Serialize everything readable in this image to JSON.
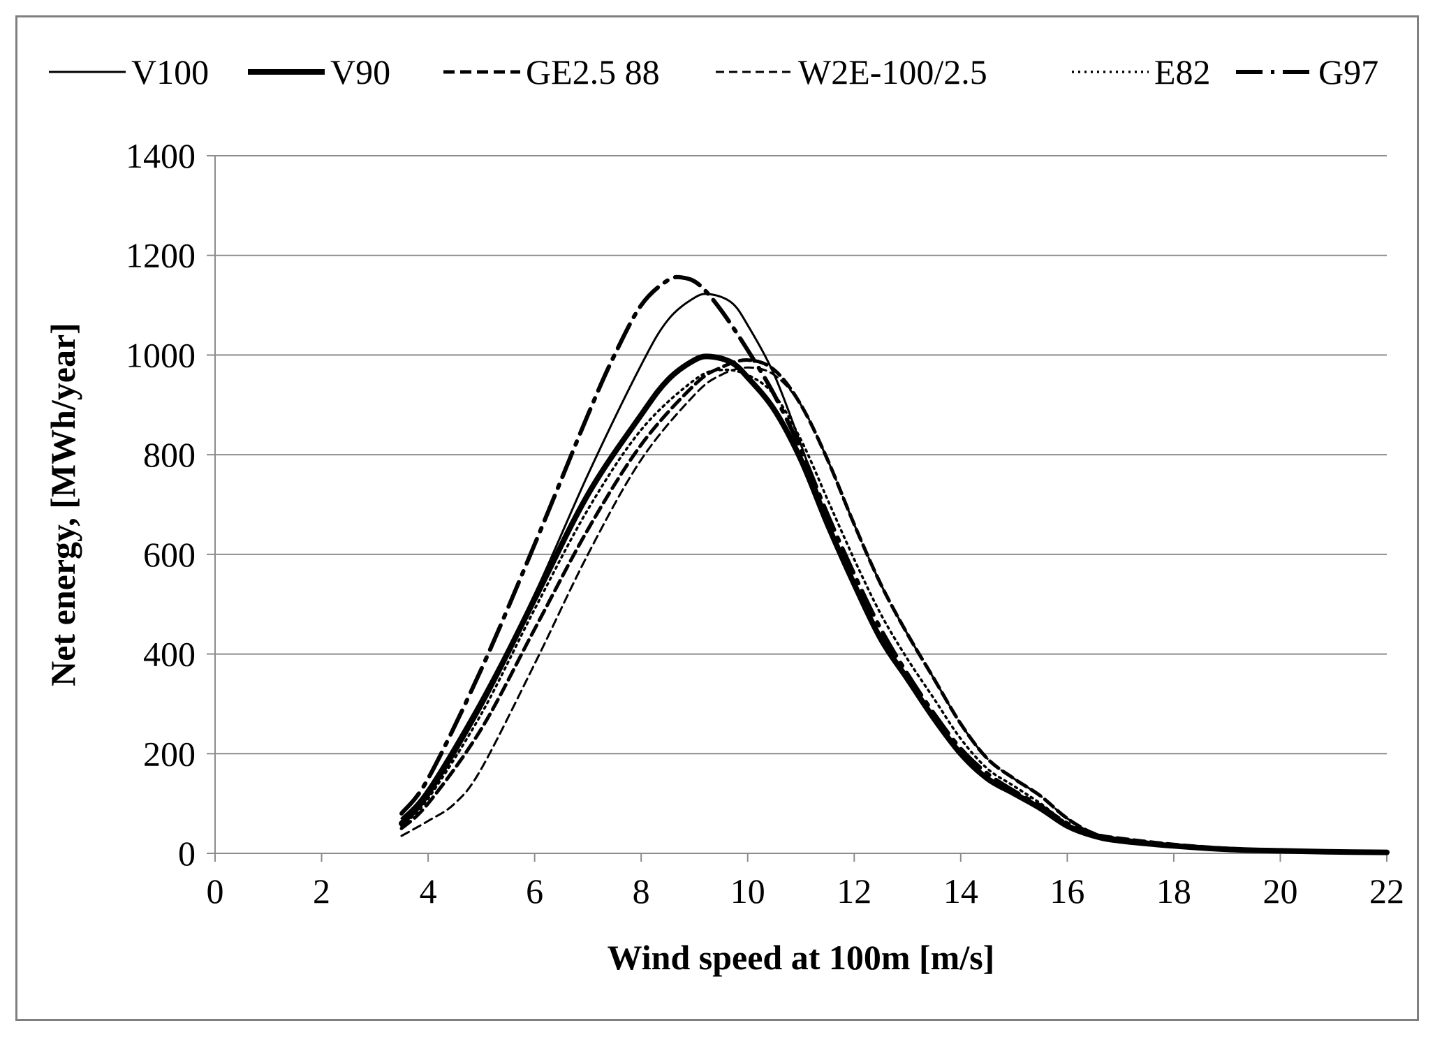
{
  "chart_data": {
    "type": "line",
    "title": "",
    "xlabel": "Wind speed at 100m [m/s]",
    "ylabel": "Net energy, [MWh/year]",
    "xlim": [
      0,
      22
    ],
    "ylim": [
      0,
      1400
    ],
    "xticks": [
      0,
      2,
      4,
      6,
      8,
      10,
      12,
      14,
      16,
      18,
      20,
      22
    ],
    "yticks": [
      0,
      200,
      400,
      600,
      800,
      1000,
      1200,
      1400
    ],
    "grid": "horizontal",
    "legend_position": "top",
    "series": [
      {
        "name": "V100",
        "style": "thin-solid",
        "x": [
          3.5,
          4,
          5,
          6,
          7,
          8,
          8.5,
          9,
          9.3,
          9.7,
          10,
          10.5,
          11,
          11.5,
          12,
          12.5,
          13,
          13.5,
          14,
          14.5,
          15,
          15.5,
          16,
          16.5,
          17,
          18,
          19,
          20,
          21,
          22
        ],
        "y": [
          70,
          130,
          310,
          520,
          760,
          980,
          1070,
          1115,
          1122,
          1105,
          1060,
          960,
          820,
          670,
          540,
          430,
          350,
          270,
          200,
          150,
          120,
          90,
          55,
          35,
          25,
          15,
          8,
          5,
          3,
          2
        ]
      },
      {
        "name": "V90",
        "style": "thick-solid",
        "x": [
          3.5,
          4,
          5,
          6,
          7,
          8,
          8.5,
          9,
          9.3,
          9.7,
          10,
          10.5,
          11,
          11.5,
          12,
          12.5,
          13,
          13.5,
          14,
          14.5,
          15,
          15.5,
          16,
          16.5,
          17,
          18,
          19,
          20,
          21,
          22
        ],
        "y": [
          60,
          120,
          300,
          510,
          720,
          880,
          950,
          990,
          997,
          985,
          955,
          890,
          790,
          660,
          540,
          430,
          350,
          270,
          200,
          150,
          120,
          90,
          55,
          35,
          25,
          15,
          8,
          5,
          3,
          2
        ]
      },
      {
        "name": "GE2.5 88",
        "style": "thick-dash",
        "x": [
          3.5,
          4,
          5,
          6,
          7,
          8,
          9,
          9.5,
          10,
          10.5,
          11,
          11.5,
          12,
          12.5,
          13,
          13.5,
          14,
          14.5,
          15,
          15.5,
          16,
          16.5,
          17,
          18,
          19,
          20,
          21,
          22
        ],
        "y": [
          50,
          100,
          250,
          450,
          650,
          820,
          940,
          975,
          990,
          970,
          900,
          790,
          660,
          540,
          440,
          350,
          260,
          190,
          150,
          115,
          70,
          40,
          30,
          18,
          10,
          6,
          4,
          3
        ]
      },
      {
        "name": "W2E-100/2.5",
        "style": "thin-dash",
        "x": [
          3.5,
          4,
          4.5,
          5,
          6,
          7,
          8,
          9,
          9.5,
          10,
          10.5,
          11,
          11.5,
          12,
          12.5,
          13,
          13.5,
          14,
          14.5,
          15,
          15.5,
          16,
          16.5,
          17,
          18,
          19,
          20,
          21,
          22
        ],
        "y": [
          35,
          65,
          100,
          170,
          380,
          600,
          790,
          920,
          960,
          975,
          960,
          900,
          790,
          660,
          540,
          440,
          350,
          260,
          190,
          150,
          115,
          70,
          40,
          30,
          18,
          10,
          6,
          4,
          3
        ]
      },
      {
        "name": "E82",
        "style": "dotted",
        "x": [
          3.5,
          4,
          5,
          6,
          7,
          8,
          9,
          9.5,
          10,
          10.5,
          11,
          11.5,
          12,
          12.5,
          13,
          13.5,
          14,
          14.5,
          15,
          15.5,
          16,
          16.5,
          17,
          18,
          19,
          20,
          21,
          22
        ],
        "y": [
          55,
          110,
          280,
          490,
          690,
          850,
          950,
          970,
          960,
          920,
          830,
          710,
          590,
          480,
          390,
          310,
          230,
          170,
          135,
          100,
          60,
          35,
          25,
          15,
          8,
          5,
          3,
          2
        ]
      },
      {
        "name": "G97",
        "style": "dash-dot",
        "x": [
          3.5,
          4,
          5,
          6,
          7,
          7.5,
          8,
          8.5,
          8.8,
          9.1,
          9.5,
          10,
          10.5,
          11,
          11.5,
          12,
          12.5,
          13,
          13.5,
          14,
          14.5,
          15,
          15.5,
          16,
          16.5,
          17,
          18,
          19,
          20,
          21,
          22
        ],
        "y": [
          80,
          150,
          370,
          620,
          880,
          1000,
          1100,
          1150,
          1155,
          1140,
          1090,
          1010,
          920,
          810,
          680,
          560,
          450,
          360,
          280,
          210,
          160,
          125,
          95,
          60,
          38,
          28,
          16,
          9,
          5,
          3,
          2
        ]
      }
    ]
  }
}
